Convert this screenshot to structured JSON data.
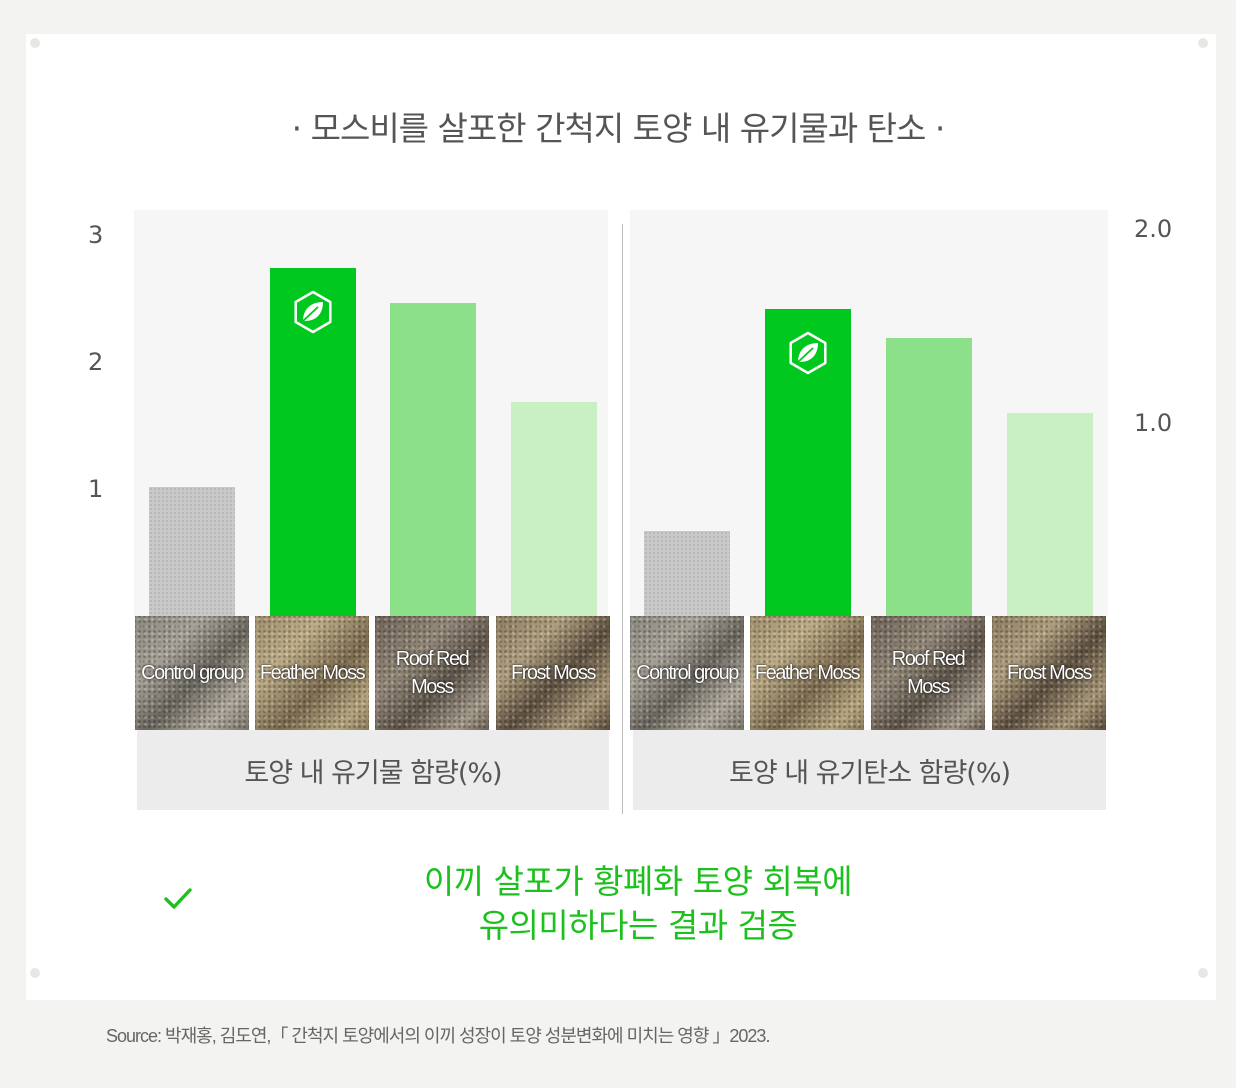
{
  "title": "· 모스비를 살포한 간척지 토양 내 유기물과 탄소 ·",
  "chart_data": [
    {
      "type": "bar",
      "title": "",
      "xlabel": "토양 내 유기물 함량(%)",
      "ylabel": "",
      "categories": [
        "Control group",
        "Feather Moss",
        "Roof Red Moss",
        "Frost Moss"
      ],
      "values": [
        1.02,
        2.74,
        2.47,
        1.69
      ],
      "ylim": [
        0,
        3.2
      ],
      "yticks": [
        "1",
        "2",
        "3"
      ],
      "highlight": "Feather Moss",
      "colors": [
        "#c9c9c9",
        "#00c81e",
        "#8ce08a",
        "#c8f0c4"
      ]
    },
    {
      "type": "bar",
      "title": "",
      "xlabel": "토양 내 유기탄소 함량(%)",
      "ylabel": "",
      "categories": [
        "Control group",
        "Feather Moss",
        "Roof Red Moss",
        "Frost Moss"
      ],
      "values": [
        0.44,
        1.59,
        1.44,
        1.05
      ],
      "ylim": [
        0,
        2.1
      ],
      "yticks": [
        "1.0",
        "2.0"
      ],
      "highlight": "Feather Moss",
      "colors": [
        "#c9c9c9",
        "#00c81e",
        "#8ce08a",
        "#c8f0c4"
      ]
    }
  ],
  "tile_labels": [
    "Control group",
    "Feather Moss",
    "Roof Red Moss",
    "Frost Moss"
  ],
  "icons": {
    "leaf": "leaf-hexagon-icon",
    "check": "check-icon"
  },
  "conclusion": {
    "line1": "이끼 살포가 황폐화 토양 회복에",
    "line2": "유의미하다는 결과 검증"
  },
  "source": "Source: 박재홍, 김도연,「 간척지 토양에서의 이끼 성장이 토양 성분변화에 미치는 영향 」2023."
}
